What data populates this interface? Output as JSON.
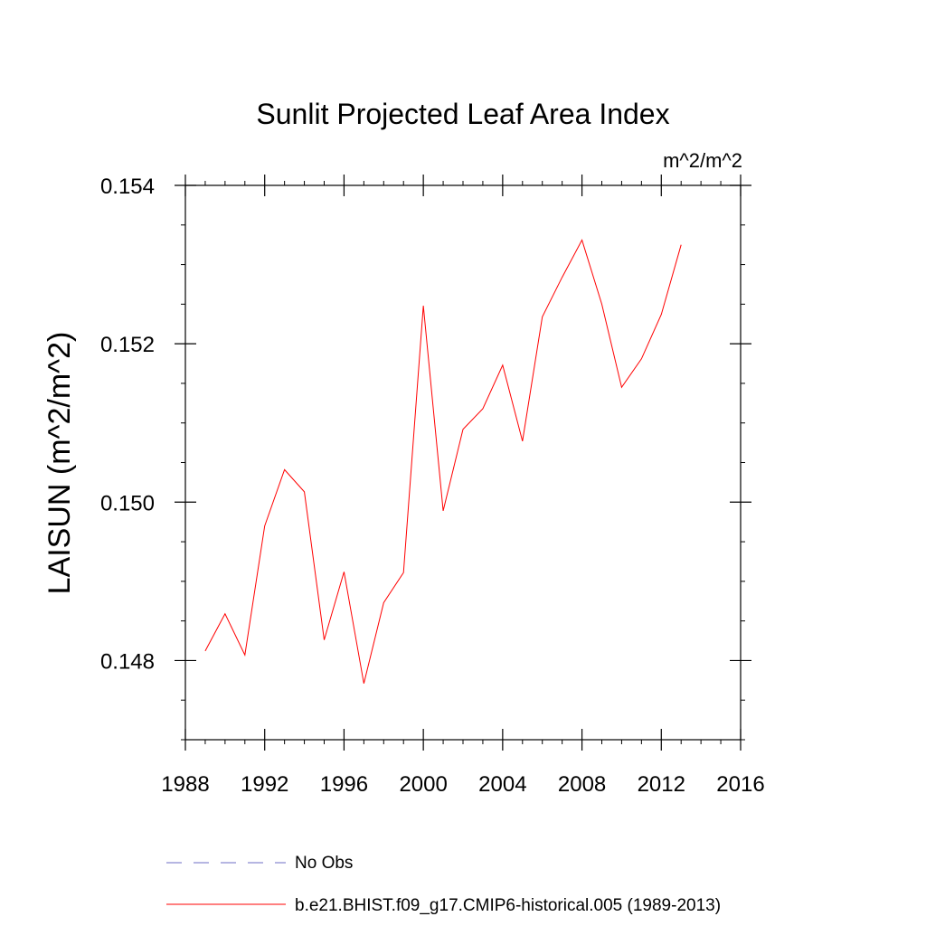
{
  "chart_data": {
    "type": "line",
    "title": "Sunlit Projected Leaf Area Index",
    "units": "m^2/m^2",
    "xlabel": "",
    "ylabel": "LAISUN  (m^2/m^2)",
    "xlim": [
      1988,
      2016
    ],
    "ylim": [
      0.147,
      0.154
    ],
    "x_ticks": [
      1988,
      1992,
      1996,
      2000,
      2004,
      2008,
      2012,
      2016
    ],
    "x_tick_labels": [
      "1988",
      "1992",
      "1996",
      "2000",
      "2004",
      "2008",
      "2012",
      "2016"
    ],
    "y_ticks": [
      0.148,
      0.15,
      0.152,
      0.154
    ],
    "y_tick_labels": [
      "0.148",
      "0.150",
      "0.152",
      "0.154"
    ],
    "y_minor_step": 0.0005,
    "x_minor_step": 1,
    "grid": false,
    "legend_position": "bottom",
    "series": [
      {
        "name": "b.e21.BHIST.f09_g17.CMIP6-historical.005 (1989-2013)",
        "color": "#ff0000",
        "dash": "solid",
        "x": [
          1989,
          1990,
          1991,
          1992,
          1993,
          1994,
          1995,
          1996,
          1997,
          1998,
          1999,
          2000,
          2001,
          2002,
          2003,
          2004,
          2005,
          2006,
          2007,
          2008,
          2009,
          2010,
          2011,
          2012,
          2013
        ],
        "values": [
          0.14812,
          0.14859,
          0.14807,
          0.1497,
          0.15041,
          0.15013,
          0.14826,
          0.14912,
          0.14771,
          0.14873,
          0.14911,
          0.15248,
          0.14989,
          0.15092,
          0.15118,
          0.15173,
          0.15077,
          0.15234,
          0.15284,
          0.15331,
          0.1525,
          0.15145,
          0.15181,
          0.15237,
          0.15325
        ]
      }
    ],
    "legend": [
      {
        "label": "No Obs",
        "color": "#8a8ad0",
        "dash": "dashed"
      },
      {
        "label": "b.e21.BHIST.f09_g17.CMIP6-historical.005 (1989-2013)",
        "color": "#ff0000",
        "dash": "solid"
      }
    ]
  }
}
